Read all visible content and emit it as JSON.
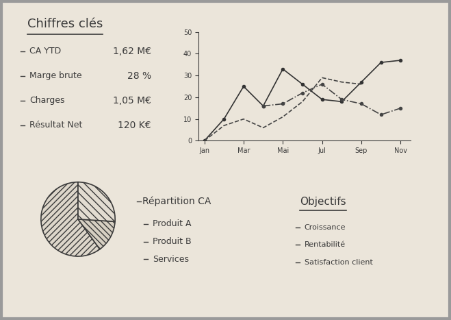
{
  "key_figures": {
    "title": "Chiffres clés",
    "items": [
      {
        "label": "CA YTD",
        "value": "1,62 M€"
      },
      {
        "label": "Marge brute",
        "value": "28 %"
      },
      {
        "label": "Charges",
        "value": "1,05 M€"
      },
      {
        "label": "Résultat Net",
        "value": "120 K€"
      }
    ]
  },
  "chart_data": [
    {
      "type": "line",
      "categories": [
        "Jan",
        null,
        "Mar",
        null,
        "Mai",
        null,
        "Jul",
        null,
        "Sep",
        null,
        "Nov"
      ],
      "ylim": [
        0,
        50
      ],
      "yticks": [
        0,
        10,
        20,
        30,
        40,
        50
      ],
      "grid": false,
      "series": [
        {
          "color": "#333333",
          "line_style": "solid",
          "marker": "o",
          "values": [
            0,
            10,
            25,
            16,
            33,
            26,
            19,
            18,
            27,
            36,
            37
          ]
        },
        {
          "color": "#444444",
          "line_style": "dashed",
          "marker": "none",
          "values": [
            0,
            7,
            10,
            6,
            11,
            18,
            29,
            27,
            26,
            null,
            null
          ]
        },
        {
          "color": "#444444",
          "line_style": "dashdot",
          "marker": "o",
          "values": [
            null,
            null,
            null,
            16,
            17,
            22,
            26,
            19,
            17,
            12,
            15
          ]
        }
      ]
    },
    {
      "type": "pie",
      "title": "Répartition CA",
      "categories": [
        "Produit A",
        "Produit B",
        "Services"
      ],
      "values": [
        60,
        14,
        26
      ],
      "colors": [
        "#ddd6ca",
        "#d6cfc2",
        "#e2dcd1"
      ]
    }
  ],
  "objectives": {
    "title": "Objectifs",
    "items": [
      "Croissance",
      "Rentabilité",
      "Satisfaction client"
    ]
  }
}
